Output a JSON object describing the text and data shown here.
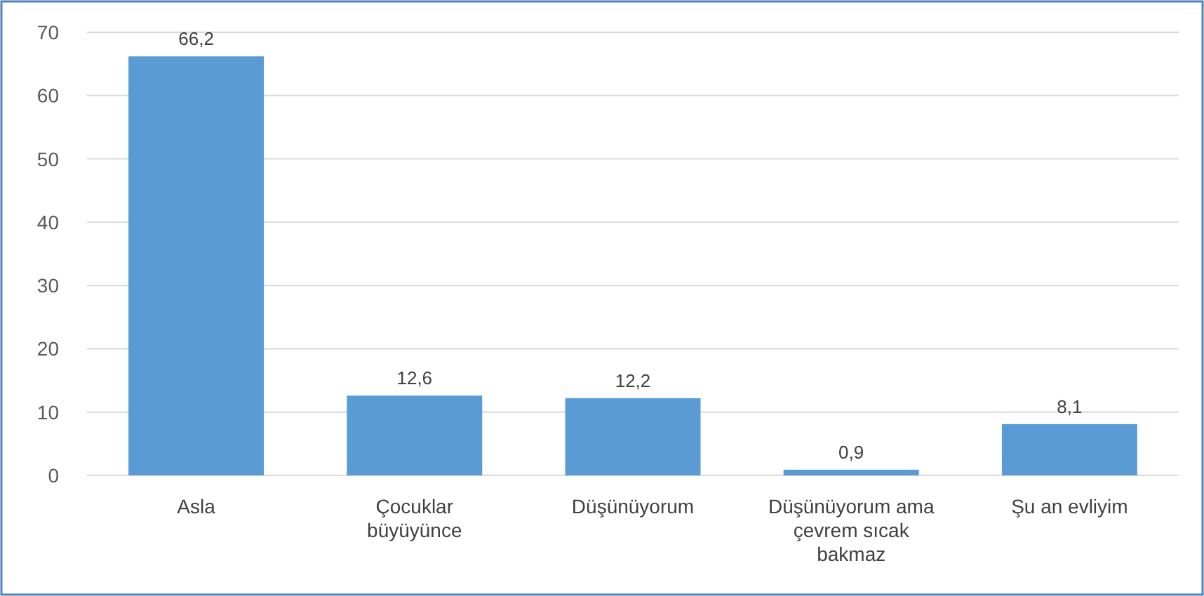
{
  "chart_data": {
    "type": "bar",
    "categories": [
      "Asla",
      "Çocuklar büyüyünce",
      "Düşünüyorum",
      "Düşünüyorum ama çevrem sıcak bakmaz",
      "Şu an evliyim"
    ],
    "values": [
      66.2,
      12.6,
      12.2,
      0.9,
      8.1
    ],
    "value_labels": [
      "66,2",
      "12,6",
      "12,2",
      "0,9",
      "8,1"
    ],
    "color": "#5b9bd5",
    "ylim": [
      0,
      70
    ],
    "yticks": [
      0,
      10,
      20,
      30,
      40,
      50,
      60,
      70
    ],
    "grid": "y"
  }
}
